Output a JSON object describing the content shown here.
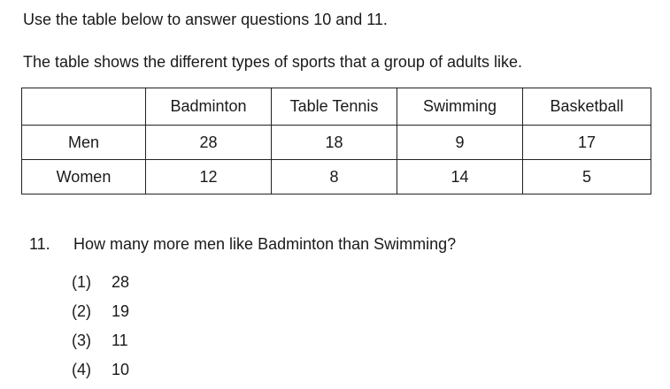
{
  "instruction": "Use the table below to answer questions 10 and 11.",
  "description": "The table shows the different types of sports that a group of adults like.",
  "table": {
    "headers": [
      "",
      "Badminton",
      "Table Tennis",
      "Swimming",
      "Basketball"
    ],
    "rows": [
      {
        "label": "Men",
        "values": [
          "28",
          "18",
          "9",
          "17"
        ]
      },
      {
        "label": "Women",
        "values": [
          "12",
          "8",
          "14",
          "5"
        ]
      }
    ]
  },
  "question": {
    "number": "11.",
    "text": "How many more men like Badminton than Swimming?",
    "options": [
      {
        "label": "(1)",
        "value": "28"
      },
      {
        "label": "(2)",
        "value": "19"
      },
      {
        "label": "(3)",
        "value": "11"
      },
      {
        "label": "(4)",
        "value": "10"
      }
    ]
  }
}
